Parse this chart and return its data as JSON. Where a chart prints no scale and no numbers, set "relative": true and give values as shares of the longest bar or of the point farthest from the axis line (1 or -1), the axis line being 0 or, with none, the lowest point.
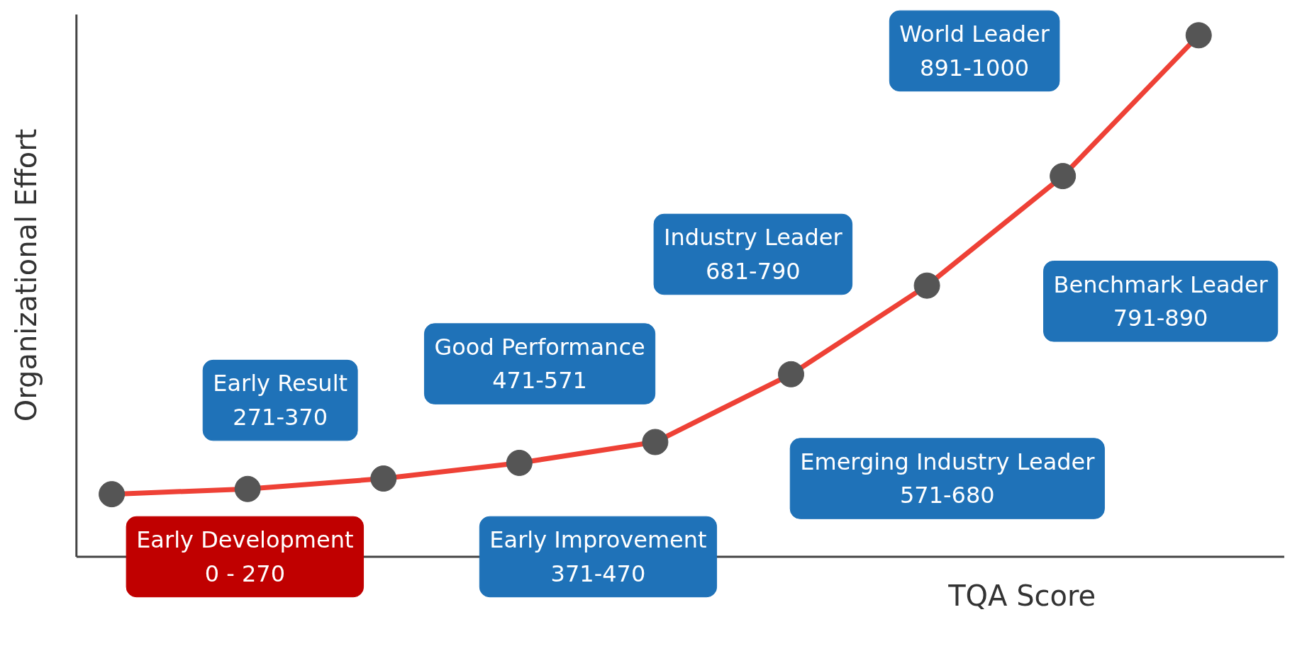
{
  "chart_data": {
    "type": "line",
    "relative": true,
    "xlabel": "TQA Score",
    "ylabel": "Organizational Effort",
    "categories": [
      null,
      null,
      null,
      null,
      null,
      null,
      null,
      null,
      null
    ],
    "series": [
      {
        "color": "#ee4136",
        "values": [
          0.12,
          0.13,
          0.15,
          0.18,
          0.22,
          0.35,
          0.52,
          0.73,
          1.0
        ]
      }
    ],
    "marker": "circle",
    "line_style": "solid",
    "grid": false,
    "annotations": [
      "Early Development\n0 - 270",
      "Early Result\n271-370",
      "Early Improvement\n371-470",
      "Good Performance\n471-571",
      "Emerging Industry Leader\n571-680",
      "Industry Leader\n681-790",
      "Benchmark Leader\n791-890",
      "World Leader\n891-1000"
    ]
  }
}
